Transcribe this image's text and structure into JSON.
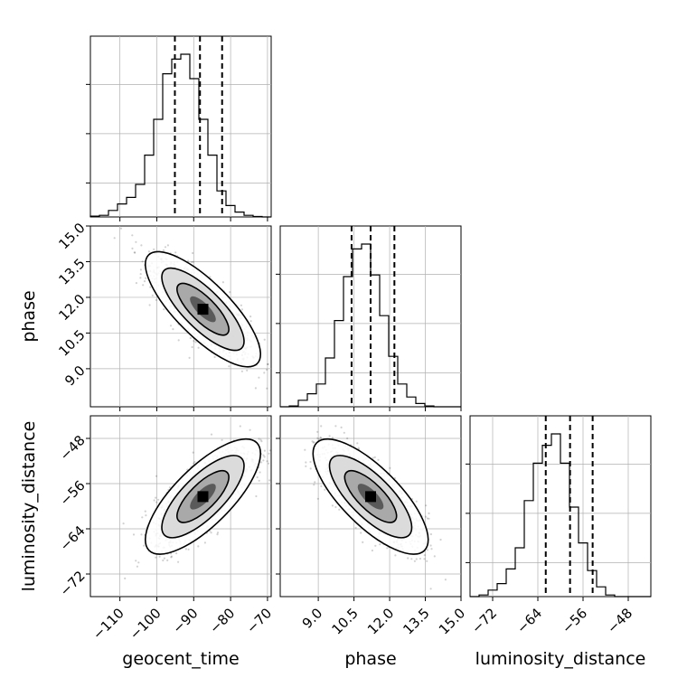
{
  "chart_data": {
    "type": "corner",
    "parameters": [
      "geocent_time",
      "phase",
      "luminosity_distance"
    ],
    "axis_labels": {
      "geocent_time": "geocent_time",
      "phase": "phase",
      "luminosity_distance": "luminosity_distance"
    },
    "ranges": {
      "geocent_time": [
        -118,
        -69
      ],
      "phase": [
        7.4,
        15.0
      ],
      "luminosity_distance": [
        -76,
        -44
      ]
    },
    "ticks": {
      "geocent_time": {
        "values": [
          -110,
          -100,
          -90,
          -80,
          -70
        ],
        "labels": [
          "−110",
          "−100",
          "−90",
          "−80",
          "−70"
        ]
      },
      "phase": {
        "values": [
          9.0,
          10.5,
          12.0,
          13.5,
          15.0
        ],
        "labels": [
          "9.0",
          "10.5",
          "12.0",
          "13.5",
          "15.0"
        ]
      },
      "luminosity_distance": {
        "values": [
          -72,
          -64,
          -56,
          -48
        ],
        "labels": [
          "−72",
          "−64",
          "−56",
          "−48"
        ]
      }
    },
    "histograms": [
      {
        "param": "geocent_time",
        "quantiles": [
          -95.1,
          -88.3,
          -82.3
        ],
        "counts": [
          0.005,
          0.01,
          0.04,
          0.08,
          0.12,
          0.2,
          0.38,
          0.6,
          0.88,
          0.97,
          1.0,
          0.85,
          0.6,
          0.38,
          0.16,
          0.07,
          0.03,
          0.01,
          0.003,
          0.0
        ]
      },
      {
        "param": "phase",
        "quantiles": [
          10.4,
          11.2,
          12.2
        ],
        "counts": [
          0.0,
          0.005,
          0.04,
          0.08,
          0.14,
          0.3,
          0.53,
          0.8,
          0.97,
          1.0,
          0.81,
          0.56,
          0.31,
          0.14,
          0.06,
          0.02,
          0.005,
          0.0,
          0.0,
          0.0
        ]
      },
      {
        "param": "luminosity_distance",
        "quantiles": [
          -62.6,
          -58.3,
          -54.3
        ],
        "counts": [
          0.0,
          0.01,
          0.04,
          0.08,
          0.17,
          0.3,
          0.59,
          0.82,
          0.93,
          1.0,
          0.82,
          0.55,
          0.33,
          0.16,
          0.06,
          0.01,
          0.0,
          0.0,
          0.0,
          0.0
        ]
      }
    ],
    "pairs": [
      {
        "x": "geocent_time",
        "y": "phase",
        "center": [
          -87.5,
          11.5
        ],
        "correlation": -0.78
      },
      {
        "x": "geocent_time",
        "y": "luminosity_distance",
        "center": [
          -87.5,
          -58.3
        ],
        "correlation": 0.75
      },
      {
        "x": "phase",
        "y": "luminosity_distance",
        "center": [
          11.2,
          -58.3
        ],
        "correlation": -0.75
      }
    ],
    "grid": true
  }
}
